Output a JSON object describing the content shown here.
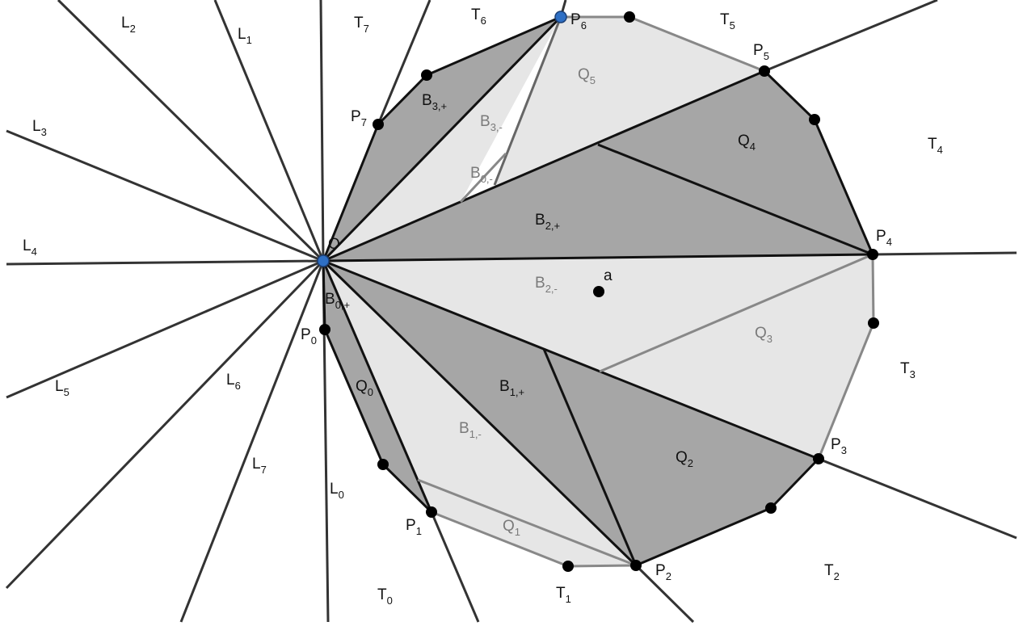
{
  "diagram": {
    "labels": {
      "L0": {
        "base": "L",
        "sub": "0"
      },
      "L1": {
        "base": "L",
        "sub": "1"
      },
      "L2": {
        "base": "L",
        "sub": "2"
      },
      "L3": {
        "base": "L",
        "sub": "3"
      },
      "L4": {
        "base": "L",
        "sub": "4"
      },
      "L5": {
        "base": "L",
        "sub": "5"
      },
      "L6": {
        "base": "L",
        "sub": "6"
      },
      "L7": {
        "base": "L",
        "sub": "7"
      },
      "T0": {
        "base": "T",
        "sub": "0"
      },
      "T1": {
        "base": "T",
        "sub": "1"
      },
      "T2": {
        "base": "T",
        "sub": "2"
      },
      "T3": {
        "base": "T",
        "sub": "3"
      },
      "T4": {
        "base": "T",
        "sub": "4"
      },
      "T5": {
        "base": "T",
        "sub": "5"
      },
      "T6": {
        "base": "T",
        "sub": "6"
      },
      "T7": {
        "base": "T",
        "sub": "7"
      },
      "P0": {
        "base": "P",
        "sub": "0"
      },
      "P1": {
        "base": "P",
        "sub": "1"
      },
      "P2": {
        "base": "P",
        "sub": "2"
      },
      "P3": {
        "base": "P",
        "sub": "3"
      },
      "P4": {
        "base": "P",
        "sub": "4"
      },
      "P5": {
        "base": "P",
        "sub": "5"
      },
      "P6": {
        "base": "P",
        "sub": "6"
      },
      "P7": {
        "base": "P",
        "sub": "7"
      },
      "Q0": {
        "base": "Q",
        "sub": "0"
      },
      "Q1": {
        "base": "Q",
        "sub": "1"
      },
      "Q2": {
        "base": "Q",
        "sub": "2"
      },
      "Q3": {
        "base": "Q",
        "sub": "3"
      },
      "Q4": {
        "base": "Q",
        "sub": "4"
      },
      "Q5": {
        "base": "Q",
        "sub": "5"
      },
      "B0p": {
        "base": "B",
        "sub": "0,+"
      },
      "B0m": {
        "base": "B",
        "sub": "0,-"
      },
      "B1p": {
        "base": "B",
        "sub": "1,+"
      },
      "B1m": {
        "base": "B",
        "sub": "1,-"
      },
      "B2p": {
        "base": "B",
        "sub": "2,+"
      },
      "B2m": {
        "base": "B",
        "sub": "2,-"
      },
      "B3p": {
        "base": "B",
        "sub": "3,+"
      },
      "B3m": {
        "base": "B",
        "sub": "3,-"
      },
      "O": {
        "base": "O",
        "sub": ""
      },
      "a": {
        "base": "a",
        "sub": ""
      }
    },
    "colors": {
      "dark_region": "#a6a6a6",
      "light_region": "#e6e6e6",
      "point": "#000000",
      "special_point": "#2e6fc4"
    }
  }
}
